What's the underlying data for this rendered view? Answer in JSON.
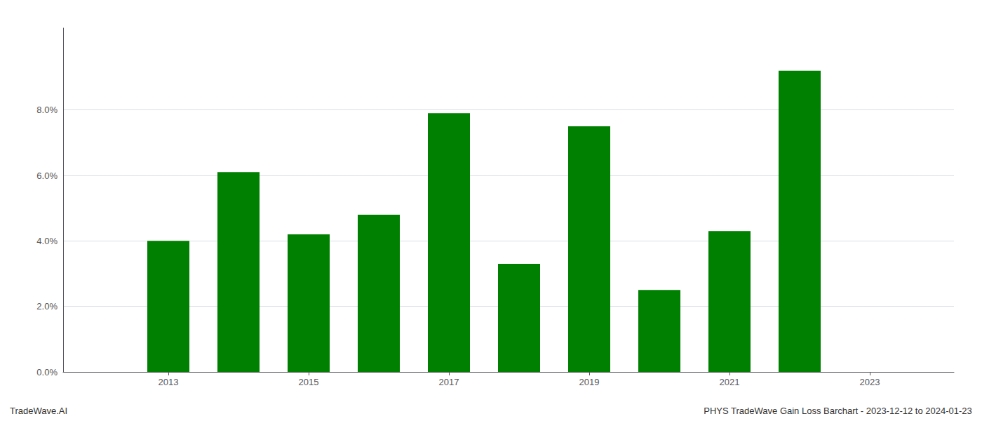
{
  "chart_data": {
    "type": "bar",
    "x": [
      2013,
      2014,
      2015,
      2016,
      2017,
      2018,
      2019,
      2020,
      2021,
      2022
    ],
    "values": [
      0.04,
      0.061,
      0.042,
      0.048,
      0.079,
      0.033,
      0.075,
      0.025,
      0.043,
      0.092
    ],
    "color": "#008000",
    "xlim": [
      2011.5,
      2024.2
    ],
    "xticks": [
      2013,
      2015,
      2017,
      2019,
      2021,
      2023
    ],
    "ylim": [
      0,
      0.105
    ],
    "yticks": [
      {
        "value": 0.0,
        "label": "0.0%"
      },
      {
        "value": 0.02,
        "label": "2.0%"
      },
      {
        "value": 0.04,
        "label": "4.0%"
      },
      {
        "value": 0.06,
        "label": "6.0%"
      },
      {
        "value": 0.08,
        "label": "8.0%"
      }
    ],
    "grid": true,
    "annotations": [
      "TradeWave.AI",
      "PHYS TradeWave Gain Loss Barchart - 2023-12-12 to 2024-01-23"
    ]
  }
}
